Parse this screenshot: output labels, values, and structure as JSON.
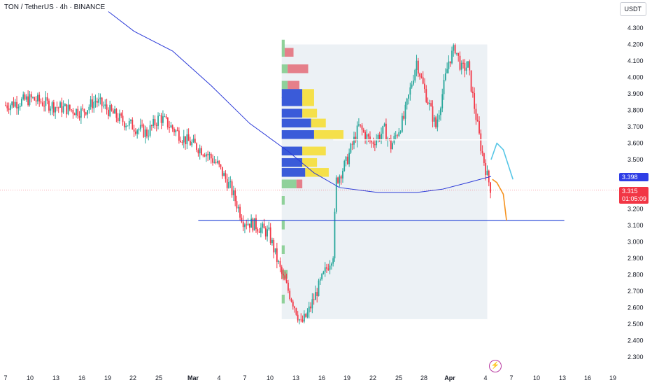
{
  "header": {
    "title": "TON / TetherUS · 4h · BINANCE",
    "currency_button": "USDT"
  },
  "price_tags": {
    "current_level": "3.398",
    "last_price": "3.315",
    "countdown": "01:05:09"
  },
  "theme": {
    "up": "#26a69a",
    "down": "#f23645",
    "ma": "#2b3ad8",
    "support": "#1e3fd6",
    "profile_green": "#8fd19a",
    "profile_red": "#e57f8a",
    "profile_blue": "#3a5bd9",
    "profile_yellow": "#f5e04a",
    "bg_box": "#dfe8ee",
    "projection_orange": "#f5921e",
    "projection_cyan": "#56c6e6"
  },
  "chart_data": {
    "type": "line",
    "symbol": "TON / TetherUS",
    "interval": "4h",
    "exchange": "BINANCE",
    "x_tick_labels": [
      "7",
      "10",
      "13",
      "16",
      "19",
      "22",
      "25",
      "Mar",
      "4",
      "7",
      "10",
      "13",
      "16",
      "19",
      "22",
      "25",
      "28",
      "Apr",
      "4",
      "7",
      "10",
      "13",
      "16",
      "19"
    ],
    "y_tick_labels": [
      "4.300",
      "4.200",
      "4.100",
      "4.000",
      "3.900",
      "3.800",
      "3.700",
      "3.600",
      "3.500",
      "3.400",
      "3.300",
      "3.200",
      "3.100",
      "3.000",
      "2.900",
      "2.800",
      "2.700",
      "2.600",
      "2.500",
      "2.400",
      "2.300"
    ],
    "ylim": [
      2.28,
      4.42
    ],
    "price_path": [
      {
        "t": 0,
        "p": 3.83
      },
      {
        "t": 4,
        "p": 3.87
      },
      {
        "t": 8,
        "p": 3.82
      },
      {
        "t": 12,
        "p": 3.79
      },
      {
        "t": 14,
        "p": 3.86
      },
      {
        "t": 18,
        "p": 3.74
      },
      {
        "t": 22,
        "p": 3.66
      },
      {
        "t": 24,
        "p": 3.76
      },
      {
        "t": 28,
        "p": 3.62
      },
      {
        "t": 31,
        "p": 3.55
      },
      {
        "t": 33,
        "p": 3.47
      },
      {
        "t": 35,
        "p": 3.33
      },
      {
        "t": 37,
        "p": 3.13
      },
      {
        "t": 39,
        "p": 3.1
      },
      {
        "t": 41,
        "p": 3.05
      },
      {
        "t": 43,
        "p": 2.8
      },
      {
        "t": 45,
        "p": 2.61
      },
      {
        "t": 46,
        "p": 2.5
      },
      {
        "t": 47,
        "p": 2.56
      },
      {
        "t": 49,
        "p": 2.75
      },
      {
        "t": 51,
        "p": 2.93
      },
      {
        "t": 51.5,
        "p": 3.37
      },
      {
        "t": 53,
        "p": 3.48
      },
      {
        "t": 55,
        "p": 3.7
      },
      {
        "t": 57,
        "p": 3.6
      },
      {
        "t": 59,
        "p": 3.68
      },
      {
        "t": 60,
        "p": 3.58
      },
      {
        "t": 62,
        "p": 3.75
      },
      {
        "t": 64,
        "p": 4.1
      },
      {
        "t": 65,
        "p": 3.95
      },
      {
        "t": 67,
        "p": 3.7
      },
      {
        "t": 69,
        "p": 4.1
      },
      {
        "t": 70,
        "p": 4.18
      },
      {
        "t": 71,
        "p": 4.05
      },
      {
        "t": 72,
        "p": 4.07
      },
      {
        "t": 73,
        "p": 3.82
      },
      {
        "t": 74,
        "p": 3.58
      },
      {
        "t": 75,
        "p": 3.4
      },
      {
        "t": 75.6,
        "p": 3.315
      }
    ],
    "moving_average": [
      {
        "t": 16,
        "p": 4.4
      },
      {
        "t": 20,
        "p": 4.28
      },
      {
        "t": 26,
        "p": 4.16
      },
      {
        "t": 32,
        "p": 3.95
      },
      {
        "t": 38,
        "p": 3.72
      },
      {
        "t": 44,
        "p": 3.55
      },
      {
        "t": 48,
        "p": 3.42
      },
      {
        "t": 52,
        "p": 3.33
      },
      {
        "t": 58,
        "p": 3.3
      },
      {
        "t": 64,
        "p": 3.3
      },
      {
        "t": 68,
        "p": 3.32
      },
      {
        "t": 72,
        "p": 3.36
      },
      {
        "t": 75.6,
        "p": 3.398
      }
    ],
    "horizontal_levels": [
      {
        "name": "support",
        "price": 3.13,
        "from": 30,
        "to": 87
      },
      {
        "name": "resistance",
        "price": 3.62,
        "from": 51,
        "to": 75
      },
      {
        "name": "early-level",
        "price": 3.29,
        "from": 28,
        "to": 32
      }
    ],
    "projections": [
      {
        "name": "bearish-projection",
        "points": [
          {
            "t": 75.8,
            "p": 3.38
          },
          {
            "t": 76.5,
            "p": 3.36
          },
          {
            "t": 77.5,
            "p": 3.29
          },
          {
            "t": 78,
            "p": 3.13
          }
        ]
      },
      {
        "name": "bullish-projection",
        "points": [
          {
            "t": 75.6,
            "p": 3.5
          },
          {
            "t": 76.5,
            "p": 3.6
          },
          {
            "t": 77.5,
            "p": 3.56
          },
          {
            "t": 79,
            "p": 3.38
          }
        ]
      }
    ],
    "volume_profile": {
      "t_start": 43,
      "t_end": 75,
      "price_low": 2.53,
      "price_high": 4.2,
      "rows": [
        {
          "p": 4.2,
          "green": 1,
          "red": 0,
          "blue": 0,
          "yellow": 0
        },
        {
          "p": 4.15,
          "green": 1,
          "red": 3,
          "blue": 0,
          "yellow": 0
        },
        {
          "p": 4.05,
          "green": 2,
          "red": 7,
          "blue": 0,
          "yellow": 0
        },
        {
          "p": 3.95,
          "green": 2,
          "red": 4,
          "blue": 0,
          "yellow": 0
        },
        {
          "p": 3.9,
          "green": 0,
          "red": 0,
          "blue": 7,
          "yellow": 4
        },
        {
          "p": 3.85,
          "green": 0,
          "red": 0,
          "blue": 7,
          "yellow": 4
        },
        {
          "p": 3.78,
          "green": 0,
          "red": 0,
          "blue": 7,
          "yellow": 5
        },
        {
          "p": 3.72,
          "green": 0,
          "red": 0,
          "blue": 10,
          "yellow": 5
        },
        {
          "p": 3.65,
          "green": 0,
          "red": 0,
          "blue": 11,
          "yellow": 10
        },
        {
          "p": 3.55,
          "green": 0,
          "red": 0,
          "blue": 7,
          "yellow": 8
        },
        {
          "p": 3.48,
          "green": 0,
          "red": 0,
          "blue": 7,
          "yellow": 5
        },
        {
          "p": 3.42,
          "green": 0,
          "red": 0,
          "blue": 8,
          "yellow": 8
        },
        {
          "p": 3.35,
          "green": 5,
          "red": 2,
          "blue": 0,
          "yellow": 0
        },
        {
          "p": 3.25,
          "green": 1,
          "red": 0,
          "blue": 0,
          "yellow": 0
        },
        {
          "p": 3.1,
          "green": 1,
          "red": 0,
          "blue": 0,
          "yellow": 0
        },
        {
          "p": 2.95,
          "green": 1,
          "red": 0,
          "blue": 0,
          "yellow": 0
        },
        {
          "p": 2.8,
          "green": 2,
          "red": 0,
          "blue": 0,
          "yellow": 0
        },
        {
          "p": 2.65,
          "green": 1,
          "red": 0,
          "blue": 0,
          "yellow": 0
        }
      ]
    },
    "grid": false,
    "legend": "none"
  }
}
